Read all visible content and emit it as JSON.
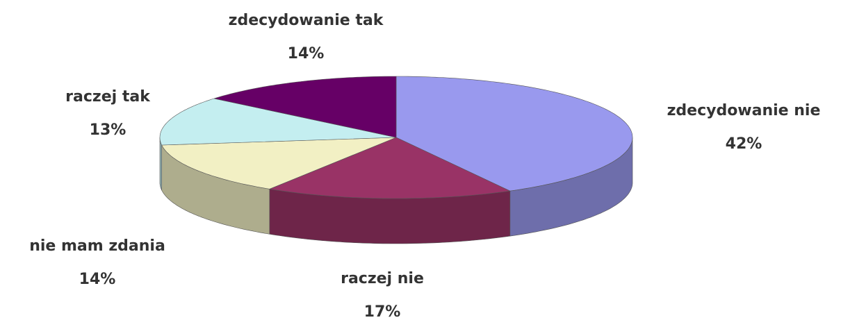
{
  "chart_data": {
    "type": "pie3d",
    "categories": [
      "zdecydowanie nie",
      "raczej nie",
      "nie mam zdania",
      "raczej tak",
      "zdecydowanie tak"
    ],
    "values": [
      42,
      17,
      14,
      13,
      14
    ],
    "value_labels": [
      "42%",
      "17%",
      "14%",
      "13%",
      "14%"
    ],
    "colors": [
      "#9999ee",
      "#993366",
      "#f2f0c4",
      "#c4eef0",
      "#660066"
    ]
  }
}
